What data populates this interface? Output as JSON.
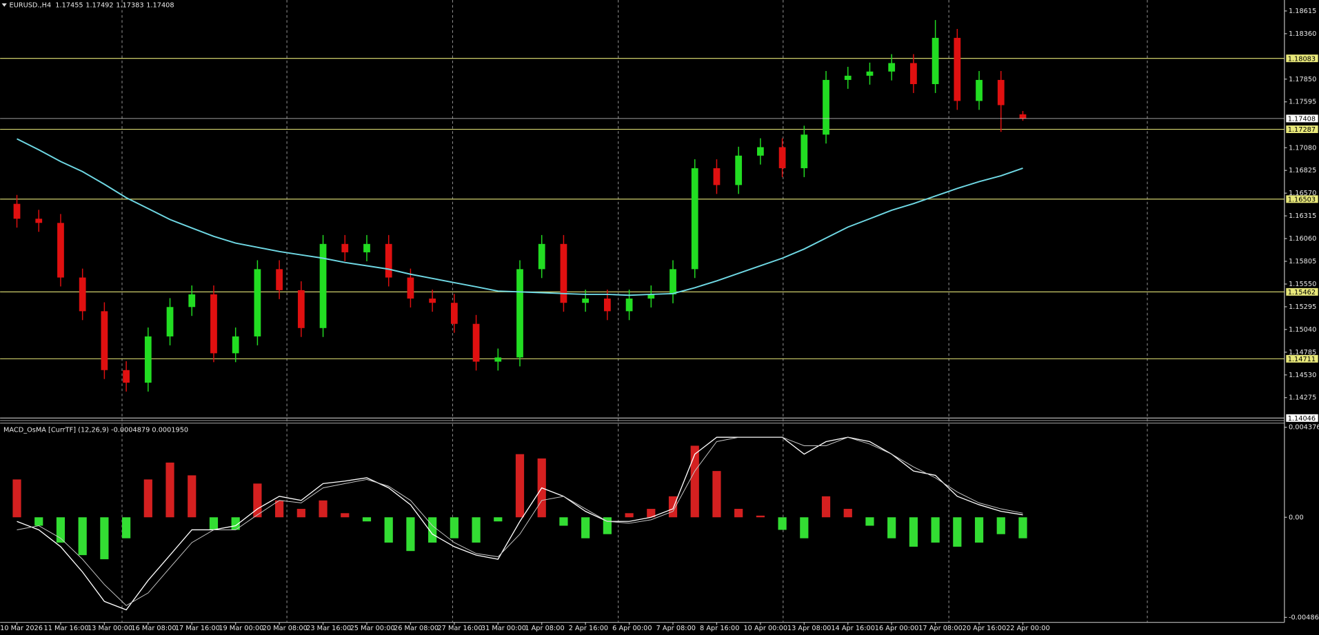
{
  "chart_data": [
    {
      "type": "candlestick",
      "title": "EURUSD.,H4",
      "categories": [
        "10 Mar 2026",
        null,
        "11 Mar 16:00",
        null,
        "13 Mar 00:00",
        null,
        "16 Mar 08:00",
        null,
        "17 Mar 16:00",
        null,
        "19 Mar 00:00",
        null,
        "20 Mar 08:00",
        null,
        "23 Mar 16:00",
        null,
        "25 Mar 00:00",
        null,
        "26 Mar 08:00",
        null,
        "27 Mar 16:00",
        null,
        "31 Mar 00:00",
        null,
        "1 Apr 08:00",
        null,
        "2 Apr 16:00",
        null,
        "6 Apr 00:00",
        null,
        "7 Apr 08:00",
        null,
        "8 Apr 16:00",
        null,
        "10 Apr 00:00",
        null,
        "13 Apr 08:00",
        null,
        "14 Apr 16:00",
        null,
        "16 Apr 00:00",
        null,
        "17 Apr 08:00",
        null,
        "20 Apr 16:00",
        null,
        "22 Apr 00:00"
      ],
      "open": [
        1.1645,
        1.16283,
        1.16236,
        1.15623,
        1.15245,
        1.14584,
        1.14443,
        1.14962,
        1.15292,
        1.15434,
        1.14773,
        1.14962,
        1.15717,
        1.15481,
        1.15056,
        1.16,
        1.15906,
        1.16,
        1.15623,
        1.15387,
        1.15339,
        1.15103,
        1.14679,
        1.14726,
        1.15717,
        1.16,
        1.15339,
        1.15387,
        1.15245,
        1.15387,
        1.15434,
        1.15717,
        1.1685,
        1.16661,
        1.16991,
        1.17086,
        1.1685,
        1.17227,
        1.17841,
        1.17888,
        1.17935,
        1.1803,
        1.17794,
        1.18313,
        1.17605,
        1.17841,
        1.17455
      ],
      "high": [
        1.1655,
        1.16383,
        1.16336,
        1.15723,
        1.15345,
        1.14684,
        1.15062,
        1.15392,
        1.15534,
        1.15534,
        1.15062,
        1.15817,
        1.15817,
        1.15581,
        1.161,
        1.161,
        1.161,
        1.161,
        1.15723,
        1.15487,
        1.15439,
        1.15203,
        1.14826,
        1.15817,
        1.161,
        1.161,
        1.15487,
        1.15487,
        1.15487,
        1.15534,
        1.15817,
        1.1695,
        1.1695,
        1.17091,
        1.17186,
        1.17186,
        1.17327,
        1.17941,
        1.17988,
        1.18035,
        1.1813,
        1.1813,
        1.18513,
        1.18413,
        1.17941,
        1.17941,
        1.17492
      ],
      "low": [
        1.16183,
        1.16136,
        1.15523,
        1.15145,
        1.14484,
        1.14343,
        1.14343,
        1.14862,
        1.15192,
        1.14673,
        1.14673,
        1.14862,
        1.15381,
        1.14956,
        1.14956,
        1.15806,
        1.15806,
        1.15523,
        1.15287,
        1.15239,
        1.15003,
        1.14579,
        1.14579,
        1.14626,
        1.15617,
        1.15239,
        1.15239,
        1.15145,
        1.15145,
        1.15287,
        1.15334,
        1.15617,
        1.16561,
        1.16561,
        1.16891,
        1.1675,
        1.1675,
        1.17127,
        1.17741,
        1.17788,
        1.17835,
        1.17694,
        1.17694,
        1.17505,
        1.17505,
        1.17258,
        1.17383
      ],
      "close": [
        1.16283,
        1.16236,
        1.15623,
        1.15245,
        1.14584,
        1.14443,
        1.14962,
        1.15292,
        1.15434,
        1.14773,
        1.14962,
        1.15717,
        1.15481,
        1.15056,
        1.16,
        1.15906,
        1.16,
        1.15623,
        1.15387,
        1.15339,
        1.15103,
        1.14679,
        1.14726,
        1.15717,
        1.16,
        1.15339,
        1.15387,
        1.15245,
        1.15387,
        1.15434,
        1.15717,
        1.1685,
        1.16661,
        1.16991,
        1.17086,
        1.1685,
        1.17227,
        1.17841,
        1.17888,
        1.17935,
        1.1803,
        1.17794,
        1.18313,
        1.17605,
        1.17841,
        1.17558,
        1.17408
      ],
      "up_color": "#22dd22",
      "down_color": "#e01010",
      "moving_average": {
        "color": "#6fd8e4",
        "values": [
          1.1718,
          1.17057,
          1.16925,
          1.16812,
          1.1667,
          1.16519,
          1.16397,
          1.16274,
          1.16179,
          1.16085,
          1.1601,
          1.15962,
          1.15915,
          1.15877,
          1.1584,
          1.15792,
          1.15755,
          1.15717,
          1.1566,
          1.15613,
          1.15566,
          1.15519,
          1.15471,
          1.15462,
          1.15453,
          1.15443,
          1.15434,
          1.15434,
          1.15424,
          1.15434,
          1.15443,
          1.15509,
          1.15585,
          1.1567,
          1.15755,
          1.1584,
          1.15943,
          1.16066,
          1.16189,
          1.16283,
          1.16378,
          1.16453,
          1.16538,
          1.16623,
          1.16699,
          1.16765,
          1.1685
        ]
      },
      "hlines": [
        1.18083,
        1.17287,
        1.16503,
        1.15462,
        1.14711
      ],
      "hline_color": "#e8e87a",
      "lower_level": 1.14046,
      "ylim": [
        1.14018,
        1.18738
      ],
      "yticks": [
        1.18615,
        {
          "value": 1.1836,
          "label": "1.18360"
        },
        {
          "value": 1.1785,
          "label": "1.17850"
        },
        1.17595,
        {
          "value": 1.1708,
          "label": "1.17080"
        },
        1.16825,
        {
          "value": 1.1657,
          "label": "1.16570"
        },
        1.16315,
        {
          "value": 1.1606,
          "label": "1.16060"
        },
        1.15805,
        {
          "value": 1.1555,
          "label": "1.15550"
        },
        1.15295,
        {
          "value": 1.1504,
          "label": "1.15040"
        },
        1.14785,
        {
          "value": 1.1453,
          "label": "1.14530"
        },
        1.14275
      ]
    },
    {
      "type": "macd",
      "title": "MACD_OsMA [CurrTF] (12,26,9) -0.0004879 0.0001950",
      "histogram": {
        "up_color": "#d42020",
        "down_color": "#33dd33",
        "values": [
          0.00184,
          -0.00041,
          -0.00123,
          -0.00184,
          -0.00204,
          -0.00102,
          0.00184,
          0.00266,
          0.00204,
          -0.00061,
          -0.00061,
          0.00164,
          0.00082,
          0.00041,
          0.00082,
          0.0002,
          -0.0002,
          -0.00123,
          -0.00164,
          -0.00123,
          -0.00102,
          -0.00123,
          -0.0002,
          0.00307,
          0.00286,
          -0.00041,
          -0.00102,
          -0.00082,
          0.0002,
          0.00041,
          0.00102,
          0.00348,
          0.00225,
          0.00041,
          8e-05,
          -0.00061,
          -0.00102,
          0.00102,
          0.00041,
          -0.00041,
          -0.00102,
          -0.00143,
          -0.00123,
          -0.00143,
          -0.00123,
          -0.00082,
          -0.00102
        ]
      },
      "series": [
        {
          "color": "#ffffff",
          "values": [
            -0.0002,
            -0.00061,
            -0.00143,
            -0.00266,
            -0.00409,
            -0.0045,
            -0.00307,
            -0.00184,
            -0.00061,
            -0.00061,
            -0.00041,
            0.00041,
            0.00102,
            0.00082,
            0.00164,
            0.00176,
            0.00192,
            0.00143,
            0.00061,
            -0.00082,
            -0.00143,
            -0.00184,
            -0.00204,
            -0.0002,
            0.00143,
            0.00102,
            0.00029,
            -0.0002,
            -0.0002,
            0,
            0.00041,
            0.00307,
            0.00389,
            0.00389,
            0.00389,
            0.00389,
            0.00307,
            0.00368,
            0.00389,
            0.00368,
            0.00307,
            0.00225,
            0.00204,
            0.00102,
            0.00061,
            0.00029,
            0.00012
          ]
        },
        {
          "color": "#c8c8c8",
          "values": [
            -0.00061,
            -0.00041,
            -0.00102,
            -0.00204,
            -0.00327,
            -0.00429,
            -0.00368,
            -0.00245,
            -0.00123,
            -0.00061,
            -0.00061,
            0.00012,
            0.00082,
            0.0007,
            0.00143,
            0.00164,
            0.00184,
            0.00151,
            0.00082,
            -0.00041,
            -0.00123,
            -0.00176,
            -0.00192,
            -0.00082,
            0.00082,
            0.00102,
            0.00041,
            -0.0002,
            -0.00029,
            -0.00012,
            0.00029,
            0.00225,
            0.00368,
            0.00389,
            0.00389,
            0.00389,
            0.00348,
            0.00348,
            0.00389,
            0.00356,
            0.00307,
            0.00245,
            0.00192,
            0.00123,
            0.0007,
            0.00041,
            0.0002
          ]
        }
      ],
      "ylim": [
        -0.00511,
        0.0045
      ],
      "yticks": [
        0.0043765,
        {
          "value": 0,
          "label": "0.00"
        },
        -0.004865
      ]
    }
  ]
}
